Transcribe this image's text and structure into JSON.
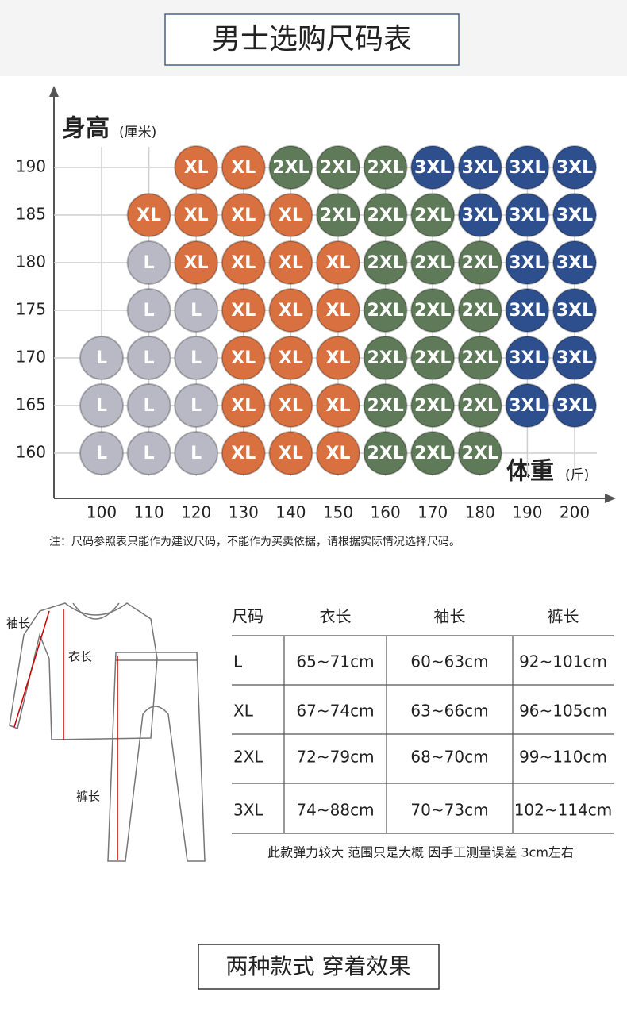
{
  "title": "男士选购尺码表",
  "size_chart": {
    "y_label": "身高",
    "y_unit": "(厘米)",
    "x_label": "体重",
    "x_unit": "(斤)",
    "heights": [
      190,
      185,
      180,
      175,
      170,
      165,
      160
    ],
    "weights": [
      100,
      110,
      120,
      130,
      140,
      150,
      160,
      170,
      180,
      190,
      200
    ],
    "cells": [
      [
        null,
        null,
        "XL",
        "XL",
        "2XL",
        "2XL",
        "2XL",
        "3XL",
        "3XL",
        "3XL",
        "3XL"
      ],
      [
        null,
        "XL",
        "XL",
        "XL",
        "XL",
        "2XL",
        "2XL",
        "2XL",
        "3XL",
        "3XL",
        "3XL"
      ],
      [
        null,
        "L",
        "XL",
        "XL",
        "XL",
        "XL",
        "2XL",
        "2XL",
        "2XL",
        "3XL",
        "3XL"
      ],
      [
        null,
        "L",
        "L",
        "XL",
        "XL",
        "XL",
        "2XL",
        "2XL",
        "2XL",
        "3XL",
        "3XL"
      ],
      [
        "L",
        "L",
        "L",
        "XL",
        "XL",
        "XL",
        "2XL",
        "2XL",
        "2XL",
        "3XL",
        "3XL"
      ],
      [
        "L",
        "L",
        "L",
        "XL",
        "XL",
        "XL",
        "2XL",
        "2XL",
        "2XL",
        "3XL",
        "3XL"
      ],
      [
        "L",
        "L",
        "L",
        "XL",
        "XL",
        "XL",
        "2XL",
        "2XL",
        "2XL",
        null,
        null
      ]
    ],
    "size_colors": {
      "L": "#b9b9c6",
      "XL": "#d8703f",
      "2XL": "#5f7a58",
      "3XL": "#2e4f8e"
    }
  },
  "note": "注：尺码参照表只能作为建议尺码，不能作为买卖依据，请根据实际情况选择尺码。",
  "measure_labels": {
    "sleeve": "袖长",
    "top": "衣长",
    "pants": "裤长"
  },
  "table": {
    "header": [
      "尺码",
      "衣长",
      "袖长",
      "裤长"
    ],
    "rows": [
      [
        "L",
        "65~71cm",
        "60~63cm",
        "92~101cm"
      ],
      [
        "XL",
        "67~74cm",
        "63~66cm",
        "96~105cm"
      ],
      [
        "2XL",
        "72~79cm",
        "68~70cm",
        "99~110cm"
      ],
      [
        "3XL",
        "74~88cm",
        "70~73cm",
        "102~114cm"
      ]
    ]
  },
  "table_note": "此款弹力较大 范围只是大概 因手工测量误差 3cm左右",
  "footer_title": "两种款式 穿着效果"
}
